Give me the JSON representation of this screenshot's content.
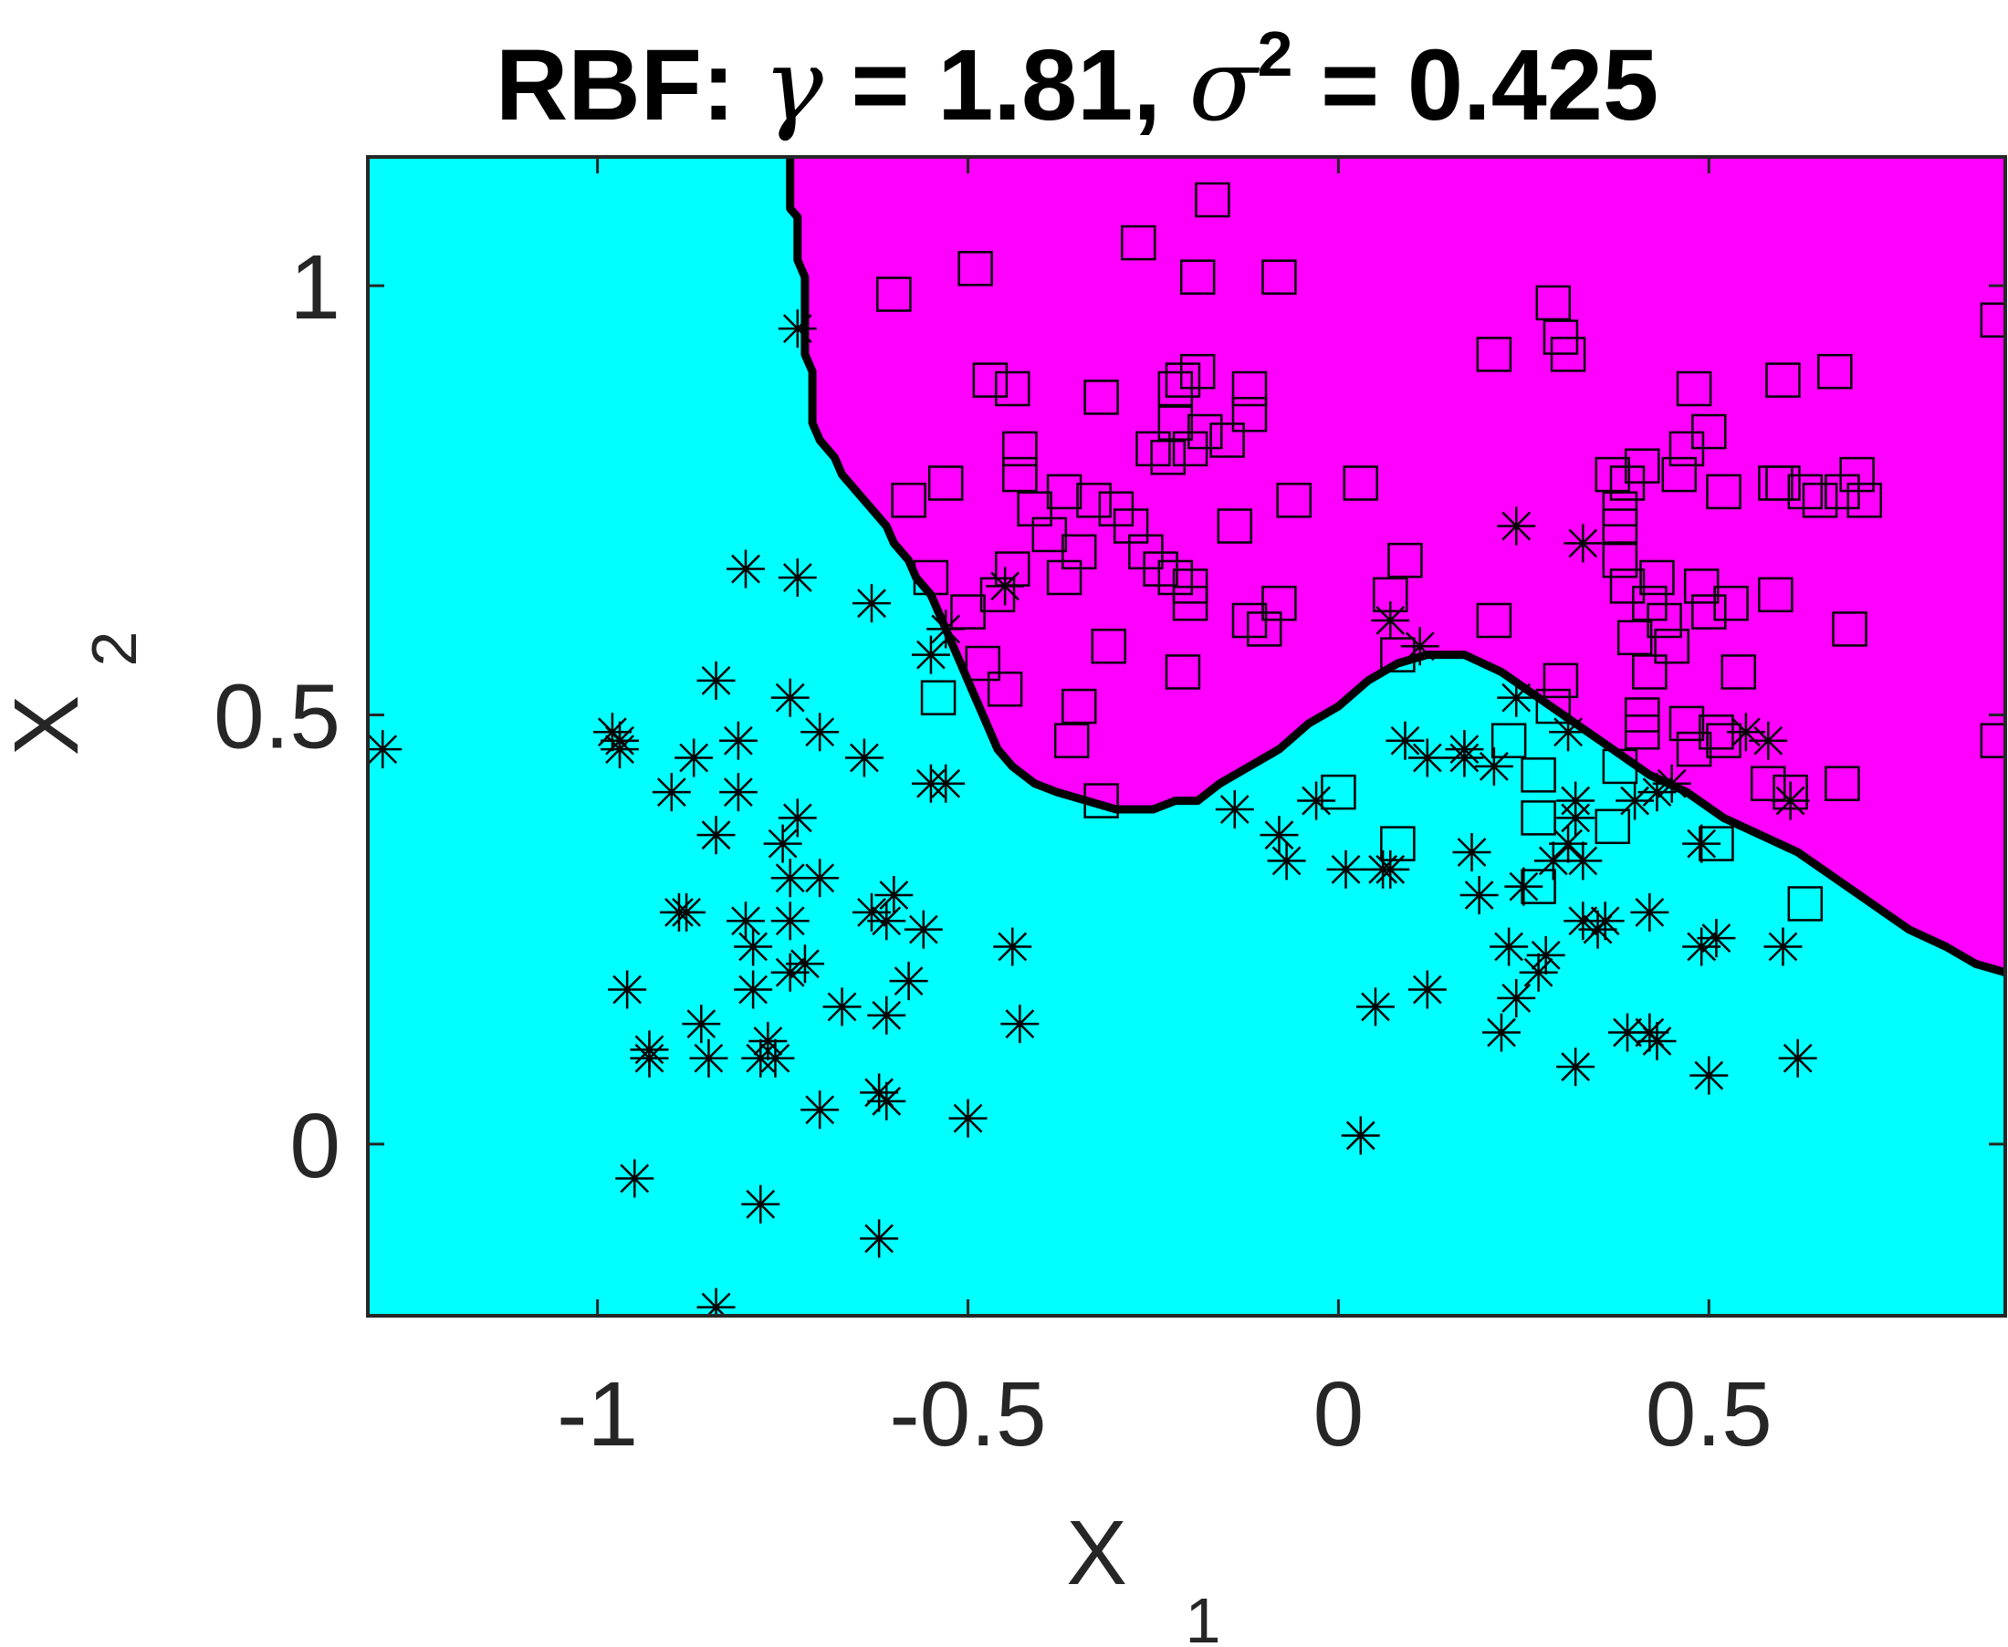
{
  "chart_data": {
    "type": "scatter",
    "title": {
      "prefix": "RBF: ",
      "gamma_symbol": "γ",
      "gamma_text": " = 1.81, ",
      "sigma_symbol": "σ",
      "sigma_exp": "2",
      "sigma_text": " = 0.425"
    },
    "xlabel": "X",
    "xlabel_sub": "1",
    "ylabel": "X",
    "ylabel_sub": "2",
    "xlim": [
      -1.31,
      0.9
    ],
    "ylim": [
      -0.2,
      1.15
    ],
    "xticks": [
      -1,
      -0.5,
      0,
      0.5
    ],
    "xtick_labels": [
      "-1",
      "-0.5",
      "0",
      "0.5"
    ],
    "yticks": [
      0,
      0.5,
      1
    ],
    "ytick_labels": [
      "0",
      "0.5",
      "1"
    ],
    "grid": false,
    "region_colors": {
      "class_square": "#ff00ff",
      "class_star": "#00ffff"
    },
    "boundary": {
      "color": "#000000",
      "points": [
        [
          -0.74,
          1.15
        ],
        [
          -0.74,
          1.09
        ],
        [
          -0.73,
          1.08
        ],
        [
          -0.73,
          1.03
        ],
        [
          -0.72,
          1.01
        ],
        [
          -0.72,
          0.92
        ],
        [
          -0.71,
          0.9
        ],
        [
          -0.71,
          0.84
        ],
        [
          -0.7,
          0.82
        ],
        [
          -0.68,
          0.8
        ],
        [
          -0.67,
          0.78
        ],
        [
          -0.65,
          0.76
        ],
        [
          -0.63,
          0.74
        ],
        [
          -0.61,
          0.72
        ],
        [
          -0.6,
          0.7
        ],
        [
          -0.58,
          0.68
        ],
        [
          -0.57,
          0.66
        ],
        [
          -0.55,
          0.64
        ],
        [
          -0.54,
          0.62
        ],
        [
          -0.53,
          0.6
        ],
        [
          -0.52,
          0.58
        ],
        [
          -0.51,
          0.56
        ],
        [
          -0.5,
          0.54
        ],
        [
          -0.49,
          0.52
        ],
        [
          -0.48,
          0.5
        ],
        [
          -0.47,
          0.48
        ],
        [
          -0.46,
          0.46
        ],
        [
          -0.44,
          0.44
        ],
        [
          -0.41,
          0.42
        ],
        [
          -0.38,
          0.41
        ],
        [
          -0.34,
          0.4
        ],
        [
          -0.3,
          0.39
        ],
        [
          -0.25,
          0.39
        ],
        [
          -0.22,
          0.4
        ],
        [
          -0.19,
          0.4
        ],
        [
          -0.16,
          0.42
        ],
        [
          -0.12,
          0.44
        ],
        [
          -0.08,
          0.46
        ],
        [
          -0.04,
          0.49
        ],
        [
          0,
          0.51
        ],
        [
          0.04,
          0.54
        ],
        [
          0.08,
          0.56
        ],
        [
          0.12,
          0.57
        ],
        [
          0.17,
          0.57
        ],
        [
          0.22,
          0.55
        ],
        [
          0.27,
          0.52
        ],
        [
          0.32,
          0.49
        ],
        [
          0.37,
          0.46
        ],
        [
          0.42,
          0.43
        ],
        [
          0.47,
          0.41
        ],
        [
          0.52,
          0.38
        ],
        [
          0.57,
          0.36
        ],
        [
          0.62,
          0.34
        ],
        [
          0.67,
          0.31
        ],
        [
          0.72,
          0.28
        ],
        [
          0.77,
          0.25
        ],
        [
          0.82,
          0.23
        ],
        [
          0.86,
          0.21
        ],
        [
          0.9,
          0.2
        ]
      ]
    },
    "series": [
      {
        "marker": "asterisk",
        "points": [
          [
            -1.29,
            0.46
          ],
          [
            -0.98,
            0.48
          ],
          [
            -0.97,
            0.47
          ],
          [
            -0.97,
            0.46
          ],
          [
            -0.9,
            0.41
          ],
          [
            -0.87,
            0.45
          ],
          [
            -0.84,
            0.54
          ],
          [
            -0.81,
            0.47
          ],
          [
            -0.81,
            0.41
          ],
          [
            -0.84,
            0.36
          ],
          [
            -0.89,
            0.27
          ],
          [
            -0.88,
            0.27
          ],
          [
            -0.96,
            0.18
          ],
          [
            -0.93,
            0.11
          ],
          [
            -0.93,
            0.1
          ],
          [
            -0.86,
            0.14
          ],
          [
            -0.85,
            0.1
          ],
          [
            -0.78,
            0.1
          ],
          [
            -0.79,
            0.18
          ],
          [
            -0.77,
            0.12
          ],
          [
            -0.8,
            0.26
          ],
          [
            -0.79,
            0.23
          ],
          [
            -0.74,
            0.52
          ],
          [
            -0.75,
            0.35
          ],
          [
            -0.73,
            0.38
          ],
          [
            -0.7,
            0.48
          ],
          [
            -0.74,
            0.31
          ],
          [
            -0.7,
            0.31
          ],
          [
            -0.74,
            0.26
          ],
          [
            -0.74,
            0.2
          ],
          [
            -0.72,
            0.21
          ],
          [
            -0.76,
            0.1
          ],
          [
            -0.7,
            0.04
          ],
          [
            -0.67,
            0.16
          ],
          [
            -0.62,
            0.06
          ],
          [
            -0.61,
            0.05
          ],
          [
            -0.58,
            0.19
          ],
          [
            -0.61,
            0.15
          ],
          [
            -0.63,
            0.27
          ],
          [
            -0.6,
            0.29
          ],
          [
            -0.61,
            0.26
          ],
          [
            -0.56,
            0.25
          ],
          [
            -0.5,
            0.03
          ],
          [
            -0.44,
            0.23
          ],
          [
            -0.43,
            0.14
          ],
          [
            -0.95,
            -0.04
          ],
          [
            -0.78,
            -0.07
          ],
          [
            -0.62,
            -0.11
          ],
          [
            -0.84,
            -0.19
          ],
          [
            -0.8,
            0.67
          ],
          [
            -0.73,
            0.66
          ],
          [
            -0.63,
            0.63
          ],
          [
            -0.64,
            0.45
          ],
          [
            -0.55,
            0.42
          ],
          [
            -0.53,
            0.42
          ],
          [
            -0.55,
            0.57
          ],
          [
            -0.53,
            0.6
          ],
          [
            -0.45,
            0.65
          ],
          [
            -0.73,
            0.95
          ],
          [
            -0.14,
            0.39
          ],
          [
            -0.08,
            0.36
          ],
          [
            -0.07,
            0.33
          ],
          [
            -0.03,
            0.4
          ],
          [
            0.01,
            0.32
          ],
          [
            0.06,
            0.32
          ],
          [
            0.07,
            0.32
          ],
          [
            0.09,
            0.47
          ],
          [
            0.12,
            0.45
          ],
          [
            0.05,
            0.16
          ],
          [
            0.12,
            0.18
          ],
          [
            0.03,
            0.01
          ],
          [
            0.17,
            0.45
          ],
          [
            0.17,
            0.46
          ],
          [
            0.18,
            0.34
          ],
          [
            0.19,
            0.29
          ],
          [
            0.21,
            0.44
          ],
          [
            0.22,
            0.13
          ],
          [
            0.23,
            0.23
          ],
          [
            0.24,
            0.17
          ],
          [
            0.25,
            0.3
          ],
          [
            0.27,
            0.2
          ],
          [
            0.28,
            0.22
          ],
          [
            0.29,
            0.33
          ],
          [
            0.31,
            0.35
          ],
          [
            0.32,
            0.38
          ],
          [
            0.32,
            0.4
          ],
          [
            0.33,
            0.33
          ],
          [
            0.33,
            0.26
          ],
          [
            0.35,
            0.25
          ],
          [
            0.36,
            0.26
          ],
          [
            0.32,
            0.09
          ],
          [
            0.39,
            0.13
          ],
          [
            0.42,
            0.13
          ],
          [
            0.43,
            0.12
          ],
          [
            0.42,
            0.27
          ],
          [
            0.45,
            0.42
          ],
          [
            0.43,
            0.41
          ],
          [
            0.4,
            0.4
          ],
          [
            0.51,
            0.24
          ],
          [
            0.49,
            0.23
          ],
          [
            0.5,
            0.08
          ],
          [
            0.6,
            0.23
          ],
          [
            0.62,
            0.1
          ],
          [
            0.49,
            0.35
          ],
          [
            0.55,
            0.48
          ],
          [
            0.58,
            0.47
          ],
          [
            0.61,
            0.4
          ],
          [
            0.31,
            0.48
          ],
          [
            0.24,
            0.52
          ],
          [
            0.24,
            0.72
          ],
          [
            0.33,
            0.7
          ],
          [
            0.11,
            0.58
          ],
          [
            0.07,
            0.61
          ]
        ]
      },
      {
        "marker": "square",
        "points": [
          [
            -0.17,
            1.1
          ],
          [
            -0.27,
            1.05
          ],
          [
            -0.49,
            1.02
          ],
          [
            -0.19,
            1.01
          ],
          [
            -0.08,
            1.01
          ],
          [
            -0.6,
            0.99
          ],
          [
            0.29,
            0.98
          ],
          [
            0.21,
            0.92
          ],
          [
            0.3,
            0.94
          ],
          [
            0.31,
            0.92
          ],
          [
            0.89,
            0.96
          ],
          [
            -0.47,
            0.89
          ],
          [
            -0.44,
            0.88
          ],
          [
            -0.32,
            0.87
          ],
          [
            -0.22,
            0.88
          ],
          [
            -0.21,
            0.89
          ],
          [
            -0.19,
            0.9
          ],
          [
            -0.12,
            0.88
          ],
          [
            -0.12,
            0.85
          ],
          [
            -0.22,
            0.84
          ],
          [
            -0.25,
            0.81
          ],
          [
            -0.23,
            0.8
          ],
          [
            -0.2,
            0.81
          ],
          [
            -0.18,
            0.83
          ],
          [
            -0.15,
            0.82
          ],
          [
            -0.43,
            0.81
          ],
          [
            -0.43,
            0.78
          ],
          [
            -0.41,
            0.74
          ],
          [
            -0.39,
            0.71
          ],
          [
            -0.37,
            0.76
          ],
          [
            -0.33,
            0.75
          ],
          [
            -0.3,
            0.74
          ],
          [
            -0.28,
            0.72
          ],
          [
            -0.26,
            0.69
          ],
          [
            -0.24,
            0.67
          ],
          [
            -0.22,
            0.66
          ],
          [
            -0.2,
            0.65
          ],
          [
            -0.2,
            0.63
          ],
          [
            -0.35,
            0.69
          ],
          [
            -0.37,
            0.66
          ],
          [
            -0.44,
            0.67
          ],
          [
            -0.46,
            0.64
          ],
          [
            -0.5,
            0.62
          ],
          [
            -0.48,
            0.56
          ],
          [
            -0.45,
            0.53
          ],
          [
            -0.35,
            0.51
          ],
          [
            -0.31,
            0.58
          ],
          [
            -0.21,
            0.55
          ],
          [
            -0.54,
            0.52
          ],
          [
            -0.36,
            0.47
          ],
          [
            -0.32,
            0.4
          ],
          [
            -0.58,
            0.75
          ],
          [
            -0.53,
            0.77
          ],
          [
            -0.55,
            0.66
          ],
          [
            -0.14,
            0.72
          ],
          [
            -0.06,
            0.75
          ],
          [
            0.03,
            0.77
          ],
          [
            -0.08,
            0.63
          ],
          [
            -0.1,
            0.6
          ],
          [
            -0.12,
            0.61
          ],
          [
            0.09,
            0.68
          ],
          [
            0.07,
            0.64
          ],
          [
            0.08,
            0.57
          ],
          [
            0.0,
            0.41
          ],
          [
            0.08,
            0.35
          ],
          [
            0.21,
            0.61
          ],
          [
            0.23,
            0.47
          ],
          [
            0.27,
            0.43
          ],
          [
            0.27,
            0.38
          ],
          [
            0.27,
            0.3
          ],
          [
            0.29,
            0.51
          ],
          [
            0.3,
            0.54
          ],
          [
            0.37,
            0.78
          ],
          [
            0.39,
            0.77
          ],
          [
            0.41,
            0.79
          ],
          [
            0.38,
            0.74
          ],
          [
            0.38,
            0.72
          ],
          [
            0.38,
            0.68
          ],
          [
            0.39,
            0.65
          ],
          [
            0.4,
            0.59
          ],
          [
            0.41,
            0.5
          ],
          [
            0.38,
            0.44
          ],
          [
            0.37,
            0.37
          ],
          [
            0.41,
            0.48
          ],
          [
            0.42,
            0.55
          ],
          [
            0.42,
            0.63
          ],
          [
            0.43,
            0.66
          ],
          [
            0.44,
            0.61
          ],
          [
            0.45,
            0.58
          ],
          [
            0.46,
            0.78
          ],
          [
            0.47,
            0.81
          ],
          [
            0.48,
            0.88
          ],
          [
            0.5,
            0.83
          ],
          [
            0.47,
            0.49
          ],
          [
            0.48,
            0.46
          ],
          [
            0.49,
            0.65
          ],
          [
            0.5,
            0.62
          ],
          [
            0.51,
            0.48
          ],
          [
            0.52,
            0.47
          ],
          [
            0.53,
            0.63
          ],
          [
            0.54,
            0.55
          ],
          [
            0.51,
            0.35
          ],
          [
            0.52,
            0.76
          ],
          [
            0.58,
            0.42
          ],
          [
            0.59,
            0.64
          ],
          [
            0.59,
            0.77
          ],
          [
            0.6,
            0.77
          ],
          [
            0.61,
            0.41
          ],
          [
            0.63,
            0.76
          ],
          [
            0.65,
            0.75
          ],
          [
            0.68,
            0.76
          ],
          [
            0.68,
            0.42
          ],
          [
            0.7,
            0.78
          ],
          [
            0.71,
            0.75
          ],
          [
            0.69,
            0.6
          ],
          [
            0.6,
            0.89
          ],
          [
            0.67,
            0.9
          ],
          [
            0.63,
            0.28
          ],
          [
            0.89,
            0.47
          ]
        ]
      }
    ]
  }
}
